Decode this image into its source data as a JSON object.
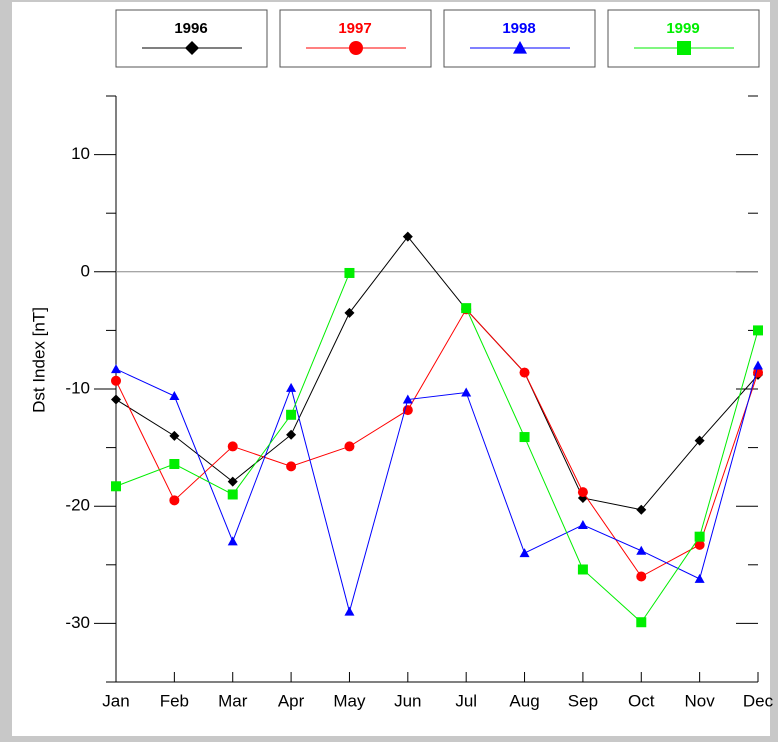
{
  "chart_data": {
    "type": "line",
    "y_label": "Dst Index  [nT]",
    "categories": [
      "Jan",
      "Feb",
      "Mar",
      "Apr",
      "May",
      "Jun",
      "Jul",
      "Aug",
      "Sep",
      "Oct",
      "Nov",
      "Dec"
    ],
    "series": [
      {
        "name": "1996",
        "color": "#000000",
        "marker": "diamond",
        "values": [
          -10.9,
          -14.0,
          -17.9,
          -13.9,
          -3.5,
          3.0,
          -3.2,
          -8.6,
          -19.3,
          -20.3,
          -14.4,
          -8.8
        ]
      },
      {
        "name": "1997",
        "color": "#ff0000",
        "marker": "circle",
        "values": [
          -9.3,
          -19.5,
          -14.9,
          -16.6,
          -14.9,
          -11.8,
          -3.2,
          -8.6,
          -18.8,
          -26.0,
          -23.3,
          -8.6
        ]
      },
      {
        "name": "1998",
        "color": "#0000ff",
        "marker": "triangle",
        "values": [
          -8.3,
          -10.6,
          -23.0,
          -9.9,
          -29.0,
          -10.9,
          -10.3,
          -24.0,
          -21.6,
          -23.8,
          -26.2,
          -8.0
        ]
      },
      {
        "name": "1999",
        "color": "#00ee00",
        "marker": "square",
        "values": [
          -18.3,
          -16.4,
          -19.0,
          -12.2,
          -0.1,
          null,
          -3.1,
          -14.1,
          -25.4,
          -29.9,
          -22.6,
          -5.0
        ]
      }
    ],
    "ylim": [
      -35,
      15
    ],
    "yticks": [
      -30,
      -20,
      -10,
      0,
      10
    ],
    "minor_yticks": [
      -35,
      -25,
      -15,
      -5,
      5,
      15
    ],
    "zero_line": true
  }
}
